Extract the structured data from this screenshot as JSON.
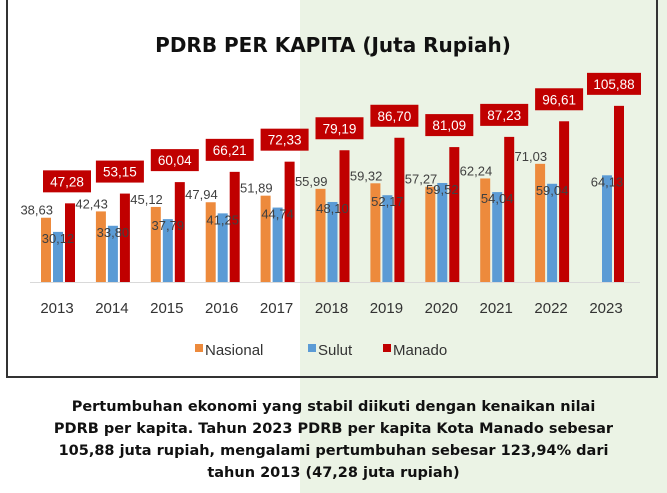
{
  "chart_data": {
    "type": "bar",
    "title": "PDRB PER KAPITA (Juta Rupiah)",
    "xlabel": "",
    "ylabel": "",
    "ylim": [
      0,
      110
    ],
    "grid": false,
    "legend_position": "bottom",
    "categories": [
      "2013",
      "2014",
      "2015",
      "2016",
      "2017",
      "2018",
      "2019",
      "2020",
      "2021",
      "2022",
      "2023"
    ],
    "series": [
      {
        "name": "Nasional",
        "color": "#ed8a3c",
        "values": [
          38.63,
          42.43,
          45.12,
          47.94,
          51.89,
          55.99,
          59.32,
          57.27,
          62.24,
          71.03,
          null
        ],
        "labels": [
          "38,63",
          "42,43",
          "45,12",
          "47,94",
          "51,89",
          "55,99",
          "59,32",
          "57,27",
          "62,24",
          "71,03",
          null
        ]
      },
      {
        "name": "Sulut",
        "color": "#5b9bd5",
        "values": [
          30.12,
          33.8,
          37.79,
          41.25,
          44.74,
          48.1,
          52.17,
          59.52,
          54.04,
          59.04,
          64.13
        ],
        "labels": [
          "30,12",
          "33,80",
          "37,79",
          "41,25",
          "44,74",
          "48,10",
          "52,17",
          "59,52",
          "54,04",
          "59,04",
          "64,13"
        ]
      },
      {
        "name": "Manado",
        "color": "#c00000",
        "values": [
          47.28,
          53.15,
          60.04,
          66.21,
          72.33,
          79.19,
          86.7,
          81.09,
          87.23,
          96.61,
          105.88
        ],
        "labels": [
          "47,28",
          "53,15",
          "60,04",
          "66,21",
          "72,33",
          "79,19",
          "86,70",
          "81,09",
          "87,23",
          "96,61",
          "105,88"
        ]
      }
    ]
  },
  "caption": {
    "lines": [
      "Pertumbuhan ekonomi yang stabil diikuti  dengan kenaikan nilai",
      "PDRB per kapita. Tahun 2023 PDRB per kapita Kota Manado sebesar",
      "105,88 juta rupiah, mengalami pertumbuhan sebesar 123,94% dari",
      "tahun 2013 (47,28 juta rupiah)"
    ]
  }
}
